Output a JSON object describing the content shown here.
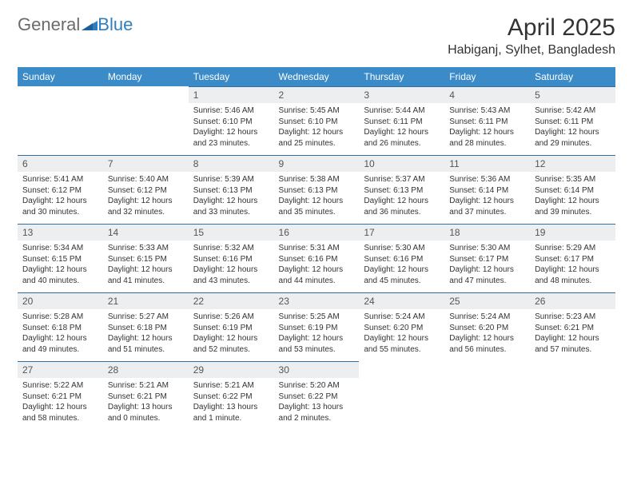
{
  "logo": {
    "part1": "General",
    "part2": "Blue"
  },
  "title": "April 2025",
  "location": "Habiganj, Sylhet, Bangladesh",
  "colors": {
    "header_bg": "#3b8bc8",
    "header_text": "#ffffff",
    "daynum_bg": "#eceef0",
    "border_top": "#2f6fa3",
    "body_text": "#333333",
    "logo_gray": "#6b6b6b",
    "logo_blue": "#2f7fbf"
  },
  "weekdays": [
    "Sunday",
    "Monday",
    "Tuesday",
    "Wednesday",
    "Thursday",
    "Friday",
    "Saturday"
  ],
  "weeks": [
    [
      null,
      null,
      {
        "n": "1",
        "sr": "5:46 AM",
        "ss": "6:10 PM",
        "dl": "12 hours and 23 minutes."
      },
      {
        "n": "2",
        "sr": "5:45 AM",
        "ss": "6:10 PM",
        "dl": "12 hours and 25 minutes."
      },
      {
        "n": "3",
        "sr": "5:44 AM",
        "ss": "6:11 PM",
        "dl": "12 hours and 26 minutes."
      },
      {
        "n": "4",
        "sr": "5:43 AM",
        "ss": "6:11 PM",
        "dl": "12 hours and 28 minutes."
      },
      {
        "n": "5",
        "sr": "5:42 AM",
        "ss": "6:11 PM",
        "dl": "12 hours and 29 minutes."
      }
    ],
    [
      {
        "n": "6",
        "sr": "5:41 AM",
        "ss": "6:12 PM",
        "dl": "12 hours and 30 minutes."
      },
      {
        "n": "7",
        "sr": "5:40 AM",
        "ss": "6:12 PM",
        "dl": "12 hours and 32 minutes."
      },
      {
        "n": "8",
        "sr": "5:39 AM",
        "ss": "6:13 PM",
        "dl": "12 hours and 33 minutes."
      },
      {
        "n": "9",
        "sr": "5:38 AM",
        "ss": "6:13 PM",
        "dl": "12 hours and 35 minutes."
      },
      {
        "n": "10",
        "sr": "5:37 AM",
        "ss": "6:13 PM",
        "dl": "12 hours and 36 minutes."
      },
      {
        "n": "11",
        "sr": "5:36 AM",
        "ss": "6:14 PM",
        "dl": "12 hours and 37 minutes."
      },
      {
        "n": "12",
        "sr": "5:35 AM",
        "ss": "6:14 PM",
        "dl": "12 hours and 39 minutes."
      }
    ],
    [
      {
        "n": "13",
        "sr": "5:34 AM",
        "ss": "6:15 PM",
        "dl": "12 hours and 40 minutes."
      },
      {
        "n": "14",
        "sr": "5:33 AM",
        "ss": "6:15 PM",
        "dl": "12 hours and 41 minutes."
      },
      {
        "n": "15",
        "sr": "5:32 AM",
        "ss": "6:16 PM",
        "dl": "12 hours and 43 minutes."
      },
      {
        "n": "16",
        "sr": "5:31 AM",
        "ss": "6:16 PM",
        "dl": "12 hours and 44 minutes."
      },
      {
        "n": "17",
        "sr": "5:30 AM",
        "ss": "6:16 PM",
        "dl": "12 hours and 45 minutes."
      },
      {
        "n": "18",
        "sr": "5:30 AM",
        "ss": "6:17 PM",
        "dl": "12 hours and 47 minutes."
      },
      {
        "n": "19",
        "sr": "5:29 AM",
        "ss": "6:17 PM",
        "dl": "12 hours and 48 minutes."
      }
    ],
    [
      {
        "n": "20",
        "sr": "5:28 AM",
        "ss": "6:18 PM",
        "dl": "12 hours and 49 minutes."
      },
      {
        "n": "21",
        "sr": "5:27 AM",
        "ss": "6:18 PM",
        "dl": "12 hours and 51 minutes."
      },
      {
        "n": "22",
        "sr": "5:26 AM",
        "ss": "6:19 PM",
        "dl": "12 hours and 52 minutes."
      },
      {
        "n": "23",
        "sr": "5:25 AM",
        "ss": "6:19 PM",
        "dl": "12 hours and 53 minutes."
      },
      {
        "n": "24",
        "sr": "5:24 AM",
        "ss": "6:20 PM",
        "dl": "12 hours and 55 minutes."
      },
      {
        "n": "25",
        "sr": "5:24 AM",
        "ss": "6:20 PM",
        "dl": "12 hours and 56 minutes."
      },
      {
        "n": "26",
        "sr": "5:23 AM",
        "ss": "6:21 PM",
        "dl": "12 hours and 57 minutes."
      }
    ],
    [
      {
        "n": "27",
        "sr": "5:22 AM",
        "ss": "6:21 PM",
        "dl": "12 hours and 58 minutes."
      },
      {
        "n": "28",
        "sr": "5:21 AM",
        "ss": "6:21 PM",
        "dl": "13 hours and 0 minutes."
      },
      {
        "n": "29",
        "sr": "5:21 AM",
        "ss": "6:22 PM",
        "dl": "13 hours and 1 minute."
      },
      {
        "n": "30",
        "sr": "5:20 AM",
        "ss": "6:22 PM",
        "dl": "13 hours and 2 minutes."
      },
      null,
      null,
      null
    ]
  ],
  "labels": {
    "sunrise": "Sunrise:",
    "sunset": "Sunset:",
    "daylight": "Daylight:"
  }
}
